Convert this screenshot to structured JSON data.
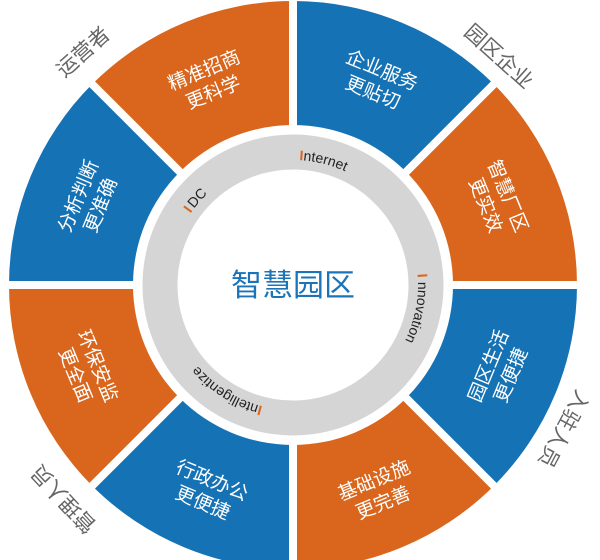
{
  "center_title": "智慧园区",
  "colors": {
    "blue": "#1572b5",
    "orange": "#d9661c",
    "ring": "#d5d5d5",
    "outer_text": "#666666",
    "center_text": "#1b74b8"
  },
  "segments": [
    {
      "line1": "企业服务",
      "line2": "更贴切",
      "color": "blue"
    },
    {
      "line1": "智慧厂区",
      "line2": "更实效",
      "color": "orange"
    },
    {
      "line1": "园区生活",
      "line2": "更便捷",
      "color": "blue"
    },
    {
      "line1": "基础设施",
      "line2": "更完善",
      "color": "orange"
    },
    {
      "line1": "行政办公",
      "line2": "更便捷",
      "color": "blue"
    },
    {
      "line1": "环保安监",
      "line2": "更全面",
      "color": "orange"
    },
    {
      "line1": "分析判断",
      "line2": "更准确",
      "color": "blue"
    },
    {
      "line1": "精准招商",
      "line2": "更科学",
      "color": "orange"
    }
  ],
  "ring_labels": [
    {
      "initial": "I",
      "rest": "nternet"
    },
    {
      "initial": "I",
      "rest": "nnovation"
    },
    {
      "initial": "I",
      "rest": "ntelligentize"
    },
    {
      "initial": "I",
      "rest": "DC"
    }
  ],
  "outer_labels": [
    "运营者",
    "园区企业",
    "入驻人员",
    "管理人员"
  ]
}
